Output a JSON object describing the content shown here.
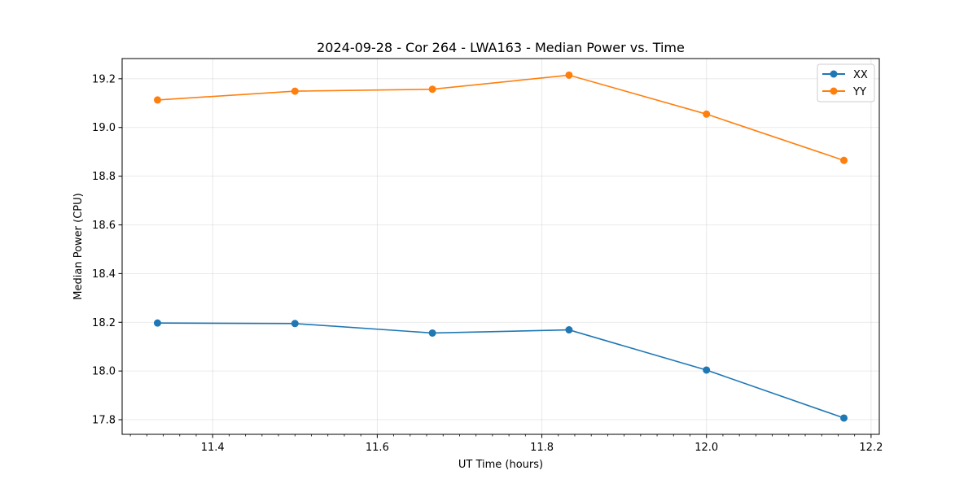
{
  "chart_data": {
    "type": "line",
    "title": "2024-09-28 - Cor 264 - LWA163 - Median Power vs. Time",
    "xlabel": "UT Time (hours)",
    "ylabel": "Median Power (CPU)",
    "xlim": [
      11.29,
      12.21
    ],
    "ylim": [
      17.74,
      19.283
    ],
    "x_ticks": [
      11.4,
      11.6,
      11.8,
      12.0,
      12.2
    ],
    "x_tick_labels": [
      "11.4",
      "11.6",
      "11.8",
      "12.0",
      "12.2"
    ],
    "y_ticks": [
      17.8,
      18.0,
      18.2,
      18.4,
      18.6,
      18.8,
      19.0,
      19.2
    ],
    "y_tick_labels": [
      "17.8",
      "18.0",
      "18.2",
      "18.4",
      "18.6",
      "18.8",
      "19.0",
      "19.2"
    ],
    "grid": true,
    "legend_position": "top-right",
    "x": [
      11.333,
      11.5,
      11.667,
      11.833,
      12.0,
      12.167
    ],
    "series": [
      {
        "name": "XX",
        "color": "#1f77b4",
        "values": [
          18.197,
          18.195,
          18.156,
          18.169,
          18.004,
          17.807
        ]
      },
      {
        "name": "YY",
        "color": "#ff7f0e",
        "values": [
          19.113,
          19.149,
          19.157,
          19.215,
          19.055,
          18.865
        ]
      }
    ]
  }
}
